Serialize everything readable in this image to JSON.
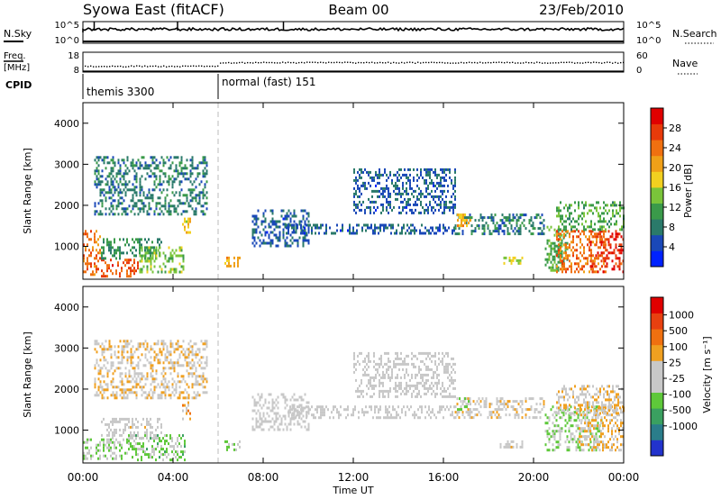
{
  "header": {
    "station": "Syowa East (fitACF)",
    "beam": "Beam 00",
    "date": "23/Feb/2010"
  },
  "strips": {
    "sky": {
      "left_label": "N.Sky",
      "right_label": "N.Search",
      "left_ticks": [
        "10^5",
        "10^0"
      ],
      "right_ticks": [
        "10^5",
        "10^0"
      ]
    },
    "freq": {
      "left_label_1": "Freq.",
      "left_label_2": "[MHz]",
      "right_label": "Nave",
      "left_ticks": [
        "18",
        "8"
      ],
      "right_ticks": [
        "60",
        "0"
      ]
    },
    "cpid": {
      "label": "CPID",
      "segments": [
        {
          "name": "themis 3300",
          "from": 0
        },
        {
          "name": "normal (fast) 151",
          "from": 6
        }
      ]
    }
  },
  "axes": {
    "xlabel": "Time UT",
    "x_ticks": [
      "00:00",
      "04:00",
      "08:00",
      "12:00",
      "16:00",
      "20:00",
      "00:00"
    ],
    "ylabel": "Slant Range [km]",
    "y_ticks": [
      "1000",
      "2000",
      "3000",
      "4000"
    ]
  },
  "colorbars": {
    "power": {
      "title": "Power [dB]",
      "ticks": [
        "4",
        "8",
        "12",
        "16",
        "20",
        "24",
        "28"
      ],
      "colors": [
        "#0022ff",
        "#1a48b8",
        "#2a7a6a",
        "#3a9a4a",
        "#7ac43a",
        "#f2d020",
        "#f0a018",
        "#f07010",
        "#e83a0a",
        "#e00000"
      ]
    },
    "velocity": {
      "title": "Velocity [m s⁻¹]",
      "ticks": [
        "1000",
        "500",
        "100",
        "25",
        "-25",
        "-100",
        "-500",
        "-1000"
      ],
      "colors": [
        "#2233cc",
        "#2a7d8a",
        "#3aa060",
        "#5ec83a",
        "#c8c8c8",
        "#c8c8c8",
        "#f0a020",
        "#f07010",
        "#e84010",
        "#e00000"
      ]
    }
  },
  "chart_data": [
    {
      "type": "heatmap",
      "panel": "power",
      "x_range_hours": [
        0,
        24
      ],
      "ylim_km": [
        200,
        4500
      ],
      "colorbar_range_db": [
        0,
        32
      ],
      "regions": [
        {
          "t": [
            0.0,
            0.8
          ],
          "r": [
            300,
            1400
          ],
          "v": 24
        },
        {
          "t": [
            0.8,
            2.5
          ],
          "r": [
            300,
            700
          ],
          "v": 26
        },
        {
          "t": [
            0.8,
            3.5
          ],
          "r": [
            700,
            1200
          ],
          "v": 10
        },
        {
          "t": [
            2.5,
            4.5
          ],
          "r": [
            400,
            1000
          ],
          "v": 14
        },
        {
          "t": [
            4.4,
            4.8
          ],
          "r": [
            1300,
            1700
          ],
          "v": 18
        },
        {
          "t": [
            0.5,
            5.5
          ],
          "r": [
            1800,
            3200
          ],
          "v": 8
        },
        {
          "t": [
            7.5,
            10.0
          ],
          "r": [
            1000,
            1900
          ],
          "v": 6
        },
        {
          "t": [
            6.2,
            7.0
          ],
          "r": [
            550,
            750
          ],
          "v": 20
        },
        {
          "t": [
            9.0,
            16.5
          ],
          "r": [
            1350,
            1550
          ],
          "v": 6
        },
        {
          "t": [
            12.0,
            16.5
          ],
          "r": [
            1800,
            2900
          ],
          "v": 6
        },
        {
          "t": [
            16.5,
            20.5
          ],
          "r": [
            1300,
            1800
          ],
          "v": 8
        },
        {
          "t": [
            16.6,
            17.2
          ],
          "r": [
            1500,
            1800
          ],
          "v": 20
        },
        {
          "t": [
            18.5,
            19.5
          ],
          "r": [
            600,
            750
          ],
          "v": 16
        },
        {
          "t": [
            20.5,
            21.5
          ],
          "r": [
            400,
            1500
          ],
          "v": 12
        },
        {
          "t": [
            21.0,
            23.2
          ],
          "r": [
            400,
            1400
          ],
          "v": 24
        },
        {
          "t": [
            22.5,
            24.0
          ],
          "r": [
            400,
            1400
          ],
          "v": 28
        },
        {
          "t": [
            21.0,
            24.0
          ],
          "r": [
            1400,
            2100
          ],
          "v": 12
        }
      ]
    },
    {
      "type": "heatmap",
      "panel": "velocity",
      "x_range_hours": [
        0,
        24
      ],
      "ylim_km": [
        200,
        4500
      ],
      "colorbar_range_ms": [
        -1000,
        1000
      ],
      "regions": [
        {
          "t": [
            0.0,
            2.0
          ],
          "r": [
            300,
            800
          ],
          "v": -150
        },
        {
          "t": [
            2.0,
            4.5
          ],
          "r": [
            300,
            900
          ],
          "v": -250
        },
        {
          "t": [
            0.8,
            3.5
          ],
          "r": [
            800,
            1300
          ],
          "v": 40
        },
        {
          "t": [
            4.4,
            4.8
          ],
          "r": [
            1300,
            1700
          ],
          "v": 300
        },
        {
          "t": [
            0.5,
            5.5
          ],
          "r": [
            1800,
            3200
          ],
          "v": 150
        },
        {
          "t": [
            6.2,
            7.0
          ],
          "r": [
            550,
            750
          ],
          "v": -200
        },
        {
          "t": [
            7.5,
            10.0
          ],
          "r": [
            1000,
            1900
          ],
          "v": 0
        },
        {
          "t": [
            9.0,
            16.5
          ],
          "r": [
            1300,
            1600
          ],
          "v": 0
        },
        {
          "t": [
            12.0,
            16.5
          ],
          "r": [
            1800,
            2900
          ],
          "v": 0
        },
        {
          "t": [
            16.5,
            20.5
          ],
          "r": [
            1300,
            1800
          ],
          "v": 120
        },
        {
          "t": [
            16.6,
            17.2
          ],
          "r": [
            1500,
            1800
          ],
          "v": -200
        },
        {
          "t": [
            18.5,
            19.5
          ],
          "r": [
            600,
            750
          ],
          "v": 80
        },
        {
          "t": [
            20.5,
            23.0
          ],
          "r": [
            500,
            1600
          ],
          "v": -200
        },
        {
          "t": [
            22.0,
            24.0
          ],
          "r": [
            500,
            1600
          ],
          "v": 200
        },
        {
          "t": [
            21.0,
            24.0
          ],
          "r": [
            1400,
            2100
          ],
          "v": 150
        }
      ]
    }
  ]
}
